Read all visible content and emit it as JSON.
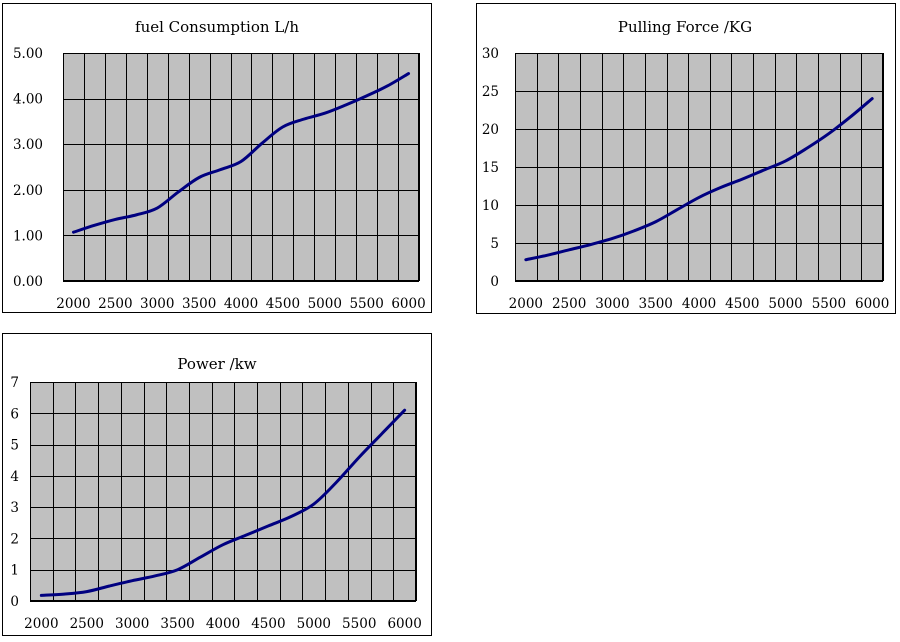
{
  "colors": {
    "plot_background": "#c0c0c0",
    "grid": "#000000",
    "line": "#000080"
  },
  "chart_data": [
    {
      "type": "line",
      "title": "fuel Consumption  L/h",
      "x": [
        2000,
        2250,
        2500,
        2750,
        3000,
        3250,
        3500,
        3750,
        4000,
        4250,
        4500,
        4750,
        5000,
        5250,
        5500,
        5750,
        6000
      ],
      "series": [
        {
          "values": [
            1.07,
            1.22,
            1.35,
            1.45,
            1.6,
            1.95,
            2.27,
            2.44,
            2.62,
            3.02,
            3.38,
            3.55,
            3.68,
            3.86,
            4.06,
            4.28,
            4.55
          ]
        }
      ],
      "x_ticks": [
        "2000",
        "2500",
        "3000",
        "3500",
        "4000",
        "4500",
        "5000",
        "5500",
        "6000"
      ],
      "y_ticks": [
        "0.00",
        "1.00",
        "2.00",
        "3.00",
        "4.00",
        "5.00"
      ],
      "xlim": [
        1875,
        6125
      ],
      "ylim": [
        0,
        5
      ],
      "grid": true
    },
    {
      "type": "line",
      "title": "Pulling Force /KG",
      "x": [
        2000,
        2250,
        2500,
        2750,
        3000,
        3250,
        3500,
        3750,
        4000,
        4250,
        4500,
        4750,
        5000,
        5250,
        5500,
        5750,
        6000
      ],
      "series": [
        {
          "values": [
            2.8,
            3.4,
            4.1,
            4.8,
            5.6,
            6.6,
            7.8,
            9.4,
            11.0,
            12.3,
            13.4,
            14.6,
            15.8,
            17.5,
            19.4,
            21.6,
            24.0
          ]
        }
      ],
      "x_ticks": [
        "2000",
        "2500",
        "3000",
        "3500",
        "4000",
        "4500",
        "5000",
        "5500",
        "6000"
      ],
      "y_ticks": [
        "0",
        "5",
        "10",
        "15",
        "20",
        "25",
        "30"
      ],
      "xlim": [
        1875,
        6125
      ],
      "ylim": [
        0,
        30
      ],
      "grid": true
    },
    {
      "type": "line",
      "title": "Power /kw",
      "x": [
        2000,
        2250,
        2500,
        2750,
        3000,
        3250,
        3500,
        3750,
        4000,
        4250,
        4500,
        4750,
        5000,
        5250,
        5500,
        5750,
        6000
      ],
      "series": [
        {
          "values": [
            0.18,
            0.22,
            0.3,
            0.48,
            0.65,
            0.8,
            1.0,
            1.4,
            1.8,
            2.1,
            2.4,
            2.7,
            3.1,
            3.8,
            4.6,
            5.35,
            6.1
          ]
        }
      ],
      "x_ticks": [
        "2000",
        "2500",
        "3000",
        "3500",
        "4000",
        "4500",
        "5000",
        "5500",
        "6000"
      ],
      "y_ticks": [
        "0",
        "1",
        "2",
        "3",
        "4",
        "5",
        "6",
        "7"
      ],
      "xlim": [
        1875,
        6125
      ],
      "ylim": [
        0,
        7
      ],
      "grid": true
    }
  ]
}
